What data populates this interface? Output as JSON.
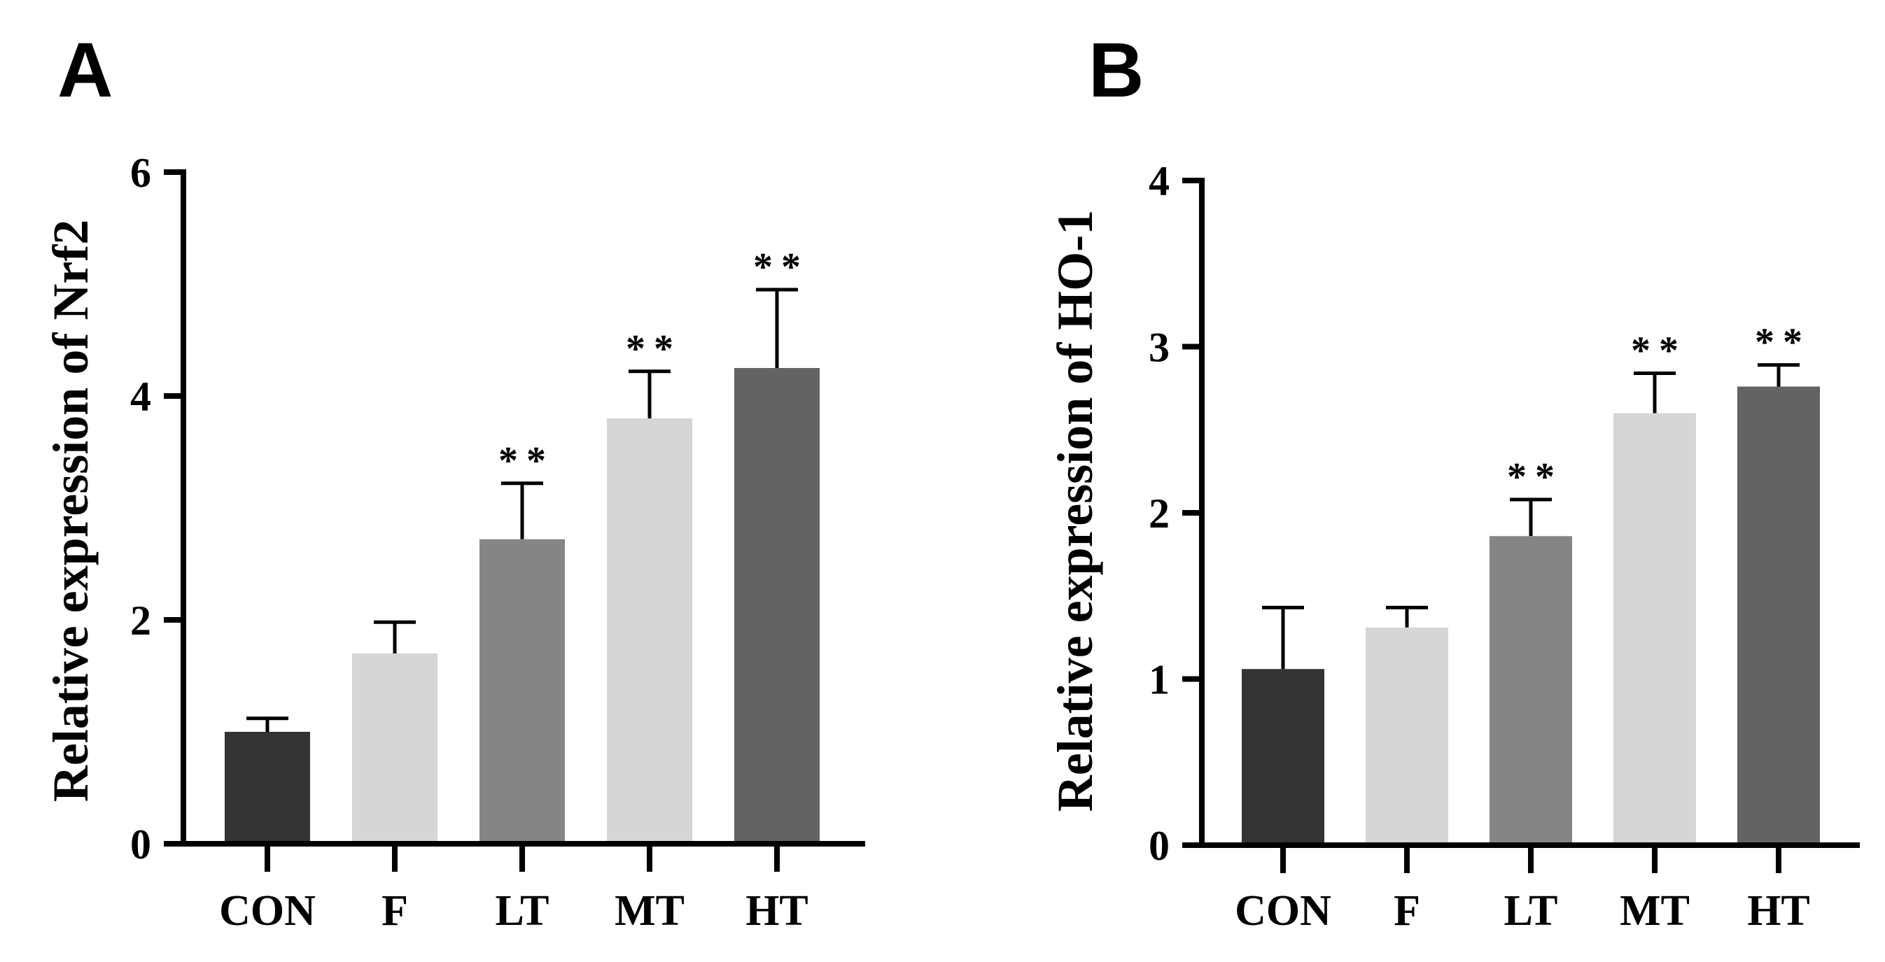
{
  "chart_data": [
    {
      "type": "bar",
      "panel": "A",
      "title": "",
      "xlabel": "",
      "ylabel": "Relative expression of Nrf2",
      "ylim": [
        0,
        6
      ],
      "yticks": [
        "0",
        "2",
        "4",
        "6"
      ],
      "categories": [
        "CON",
        "F",
        "LT",
        "MT",
        "HT"
      ],
      "values": [
        1.0,
        1.7,
        2.72,
        3.8,
        4.25
      ],
      "errors": [
        0.12,
        0.28,
        0.5,
        0.42,
        0.7
      ],
      "significance": [
        "",
        "",
        "**",
        "**",
        "**"
      ],
      "colors": [
        "#333333",
        "#d6d6d6",
        "#858585",
        "#d6d6d6",
        "#636363"
      ]
    },
    {
      "type": "bar",
      "panel": "B",
      "title": "",
      "xlabel": "",
      "ylabel": "Relative expression of HO-1",
      "ylim": [
        0,
        4
      ],
      "yticks": [
        "0",
        "1",
        "2",
        "3",
        "4"
      ],
      "categories": [
        "CON",
        "F",
        "LT",
        "MT",
        "HT"
      ],
      "values": [
        1.06,
        1.31,
        1.86,
        2.6,
        2.76
      ],
      "errors": [
        0.37,
        0.12,
        0.22,
        0.24,
        0.13
      ],
      "significance": [
        "",
        "",
        "**",
        "**",
        "**"
      ],
      "colors": [
        "#333333",
        "#d6d6d6",
        "#858585",
        "#d6d6d6",
        "#636363"
      ]
    }
  ]
}
